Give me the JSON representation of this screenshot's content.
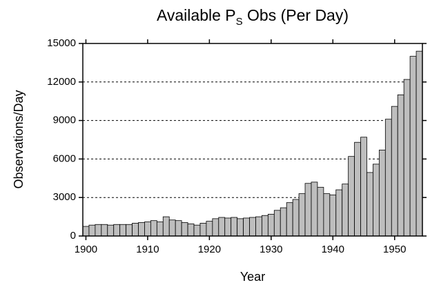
{
  "chart_data": {
    "type": "bar",
    "title": [
      "Available P",
      "S",
      " Obs (Per Day)"
    ],
    "x_label": "Year",
    "y_label": "Observations/Day",
    "x": [
      1900,
      1901,
      1902,
      1903,
      1904,
      1905,
      1906,
      1907,
      1908,
      1909,
      1910,
      1911,
      1912,
      1913,
      1914,
      1915,
      1916,
      1917,
      1918,
      1919,
      1920,
      1921,
      1922,
      1923,
      1924,
      1925,
      1926,
      1927,
      1928,
      1929,
      1930,
      1931,
      1932,
      1933,
      1934,
      1935,
      1936,
      1937,
      1938,
      1939,
      1940,
      1941,
      1942,
      1943,
      1944,
      1945,
      1946,
      1947,
      1948,
      1949,
      1950,
      1951,
      1952,
      1953,
      1954
    ],
    "values": [
      750,
      850,
      900,
      900,
      850,
      900,
      900,
      900,
      1000,
      1050,
      1100,
      1200,
      1100,
      1500,
      1250,
      1200,
      1050,
      950,
      850,
      1000,
      1150,
      1350,
      1450,
      1400,
      1450,
      1350,
      1400,
      1450,
      1500,
      1600,
      1700,
      2000,
      2200,
      2600,
      2850,
      3300,
      4100,
      4200,
      3800,
      3300,
      3200,
      3600,
      4050,
      6200,
      7300,
      7700,
      4950,
      5600,
      6700,
      9100,
      10100,
      11000,
      12200,
      14000,
      14400
    ],
    "color": "#bebebe",
    "xlim": [
      1899.5,
      1954.5
    ],
    "xticks": [
      1900,
      1910,
      1920,
      1930,
      1940,
      1950
    ],
    "ylim": [
      0,
      15000
    ],
    "yticks": [
      0,
      3000,
      6000,
      9000,
      12000,
      15000
    ],
    "grid": true
  }
}
